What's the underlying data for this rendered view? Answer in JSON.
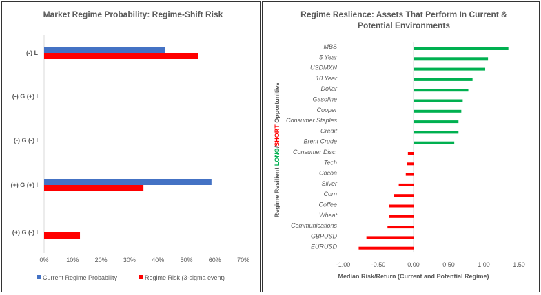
{
  "chart_data": [
    {
      "type": "bar",
      "orientation": "horizontal",
      "title": "Market Regime Probability: Regime-Shift Risk",
      "categories": [
        "(-) L",
        "(-) G (+) I",
        "(-) G (-) I",
        "(+) G (+) I",
        "(+) G (-) I"
      ],
      "series": [
        {
          "name": "Current Regime Probability",
          "color": "#4472C4",
          "values": [
            42.5,
            0,
            0,
            58.8,
            0
          ]
        },
        {
          "name": "Regime Risk (3-sigma event)",
          "color": "#FF0000",
          "values": [
            54,
            0,
            0,
            34.9,
            12.6
          ]
        }
      ],
      "xlim": [
        0,
        70
      ],
      "xticks": [
        "0%",
        "10%",
        "20%",
        "30%",
        "40%",
        "50%",
        "60%",
        "70%"
      ],
      "legend": "bottom"
    },
    {
      "type": "bar",
      "orientation": "horizontal",
      "title": "Regime Reslience: Assets That Perform In Current & Potential Environments",
      "title_lines": [
        "Regime Reslience: Assets That Perform In Current &",
        "Potential Environments"
      ],
      "categories": [
        "MBS",
        "5 Year",
        "USDMXN",
        "10 Year",
        "Dollar",
        "Gasoline",
        "Copper",
        "Consumer Staples",
        "Credit",
        "Brent Crude",
        "Consumer Disc.",
        "Tech",
        "Cocoa",
        "Silver",
        "Corn",
        "Coffee",
        "Wheat",
        "Communications",
        "GBPUSD",
        "EURUSD"
      ],
      "values": [
        1.34,
        1.05,
        1.01,
        0.83,
        0.77,
        0.69,
        0.67,
        0.63,
        0.63,
        0.57,
        -0.08,
        -0.09,
        -0.11,
        -0.21,
        -0.28,
        -0.35,
        -0.35,
        -0.37,
        -0.67,
        -0.78
      ],
      "positive_color": "#00B050",
      "negative_color": "#FF0000",
      "xlim": [
        -1,
        1.5
      ],
      "xticks": [
        "-1.00",
        "-0.50",
        "0.00",
        "0.50",
        "1.00",
        "1.50"
      ],
      "xlabel": "Median Risk/Return (Current and Potential Regime)",
      "ylabel_parts": [
        "Regime Resilient ",
        "LONG",
        "/",
        "SHORT",
        " Opportunities"
      ]
    }
  ]
}
